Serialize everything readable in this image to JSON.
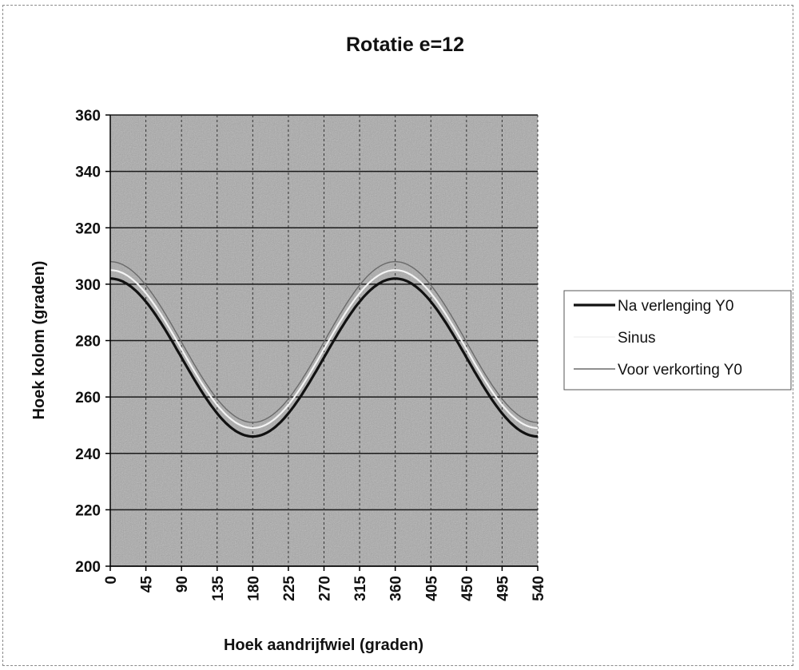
{
  "chart_data": {
    "type": "line",
    "title": "Rotatie e=12",
    "xlabel": "Hoek aandrijfwiel (graden)",
    "ylabel": "Hoek kolom (graden)",
    "xlim": [
      0,
      540
    ],
    "ylim": [
      200,
      360
    ],
    "xticks": [
      0,
      45,
      90,
      135,
      180,
      225,
      270,
      315,
      360,
      405,
      450,
      495,
      540
    ],
    "yticks": [
      200,
      220,
      240,
      260,
      280,
      300,
      320,
      340,
      360
    ],
    "grid": true,
    "legend_position": "right",
    "x": [
      0,
      45,
      90,
      135,
      180,
      225,
      270,
      315,
      360,
      405,
      450,
      495,
      540
    ],
    "series": [
      {
        "name": "Na verlenging Y0",
        "color": "#111111",
        "values": [
          302,
          294,
          274,
          254,
          246,
          254,
          274,
          294,
          302,
          294,
          274,
          254,
          246
        ]
      },
      {
        "name": "Sinus",
        "color": "#f4f4f4",
        "values": [
          305,
          297,
          277,
          257,
          249,
          257,
          277,
          297,
          305,
          297,
          277,
          257,
          249
        ]
      },
      {
        "name": "Voor verkorting Y0",
        "color": "#6a6a6a",
        "values": [
          308,
          300,
          280,
          260,
          251,
          260,
          280,
          300,
          308,
          300,
          280,
          260,
          251
        ]
      }
    ]
  }
}
